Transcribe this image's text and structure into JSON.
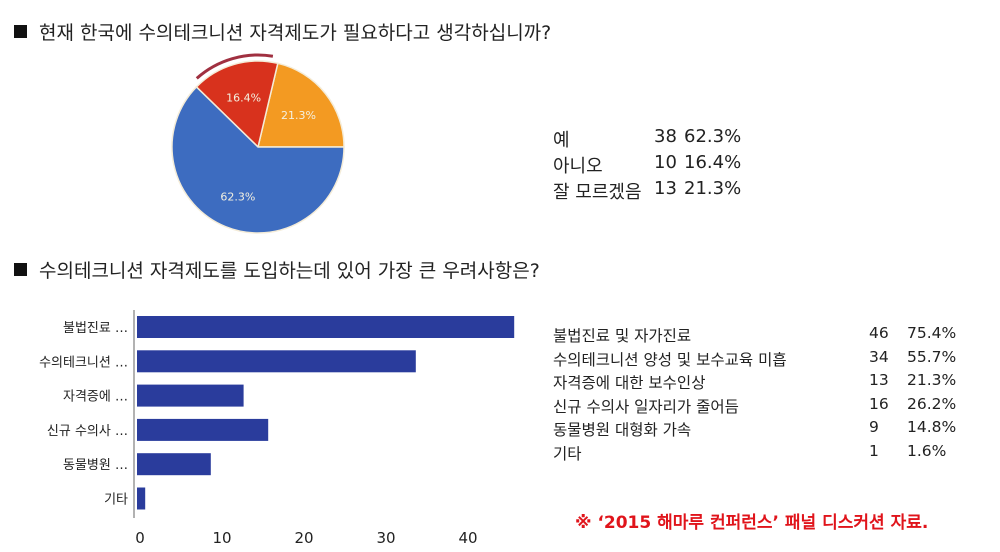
{
  "questions": {
    "q1": "현재 한국에 수의테크니션 자격제도가 필요하다고 생각하십니까?",
    "q2": "수의테크니션 자격제도를 도입하는데 있어 가장 큰 우려사항은?"
  },
  "footnote": "※ ‘2015 해마루 컨퍼런스’ 패널 디스커션 자료.",
  "chart_data": [
    {
      "type": "pie",
      "title": "현재 한국에 수의테크니션 자격제도가 필요하다고 생각하십니까?",
      "categories": [
        "예",
        "아니오",
        "잘 모르겠음"
      ],
      "counts": [
        38,
        10,
        13
      ],
      "percents": [
        "62.3%",
        "16.4%",
        "21.3%"
      ],
      "values": [
        62.3,
        16.4,
        21.3
      ],
      "slice_labels": [
        "62.3%",
        "16.4%",
        "21.3%"
      ],
      "colors": [
        "#3d6cc0",
        "#d8321d",
        "#f39a22"
      ]
    },
    {
      "type": "bar",
      "orientation": "horizontal",
      "title": "수의테크니션 자격제도를 도입하는데 있어 가장 큰 우려사항은?",
      "categories": [
        "불법진료 …",
        "수의테크니션 …",
        "자격증에 …",
        "신규 수의사 …",
        "동물병원 …",
        "기타"
      ],
      "full_labels": [
        "불법진료 및 자가진료",
        "수의테크니션 양성 및 보수교육 미흡",
        "자격증에 대한 보수인상",
        "신규 수의사 일자리가 줄어듬",
        "동물병원 대형화 가속",
        "기타"
      ],
      "values": [
        46,
        34,
        13,
        16,
        9,
        1
      ],
      "percents": [
        "75.4%",
        "55.7%",
        "21.3%",
        "26.2%",
        "14.8%",
        "1.6%"
      ],
      "xticks": [
        "0",
        "10",
        "20",
        "30",
        "40"
      ],
      "xlim": [
        0,
        47
      ],
      "color": "#2a3c9c",
      "grid": false
    }
  ]
}
